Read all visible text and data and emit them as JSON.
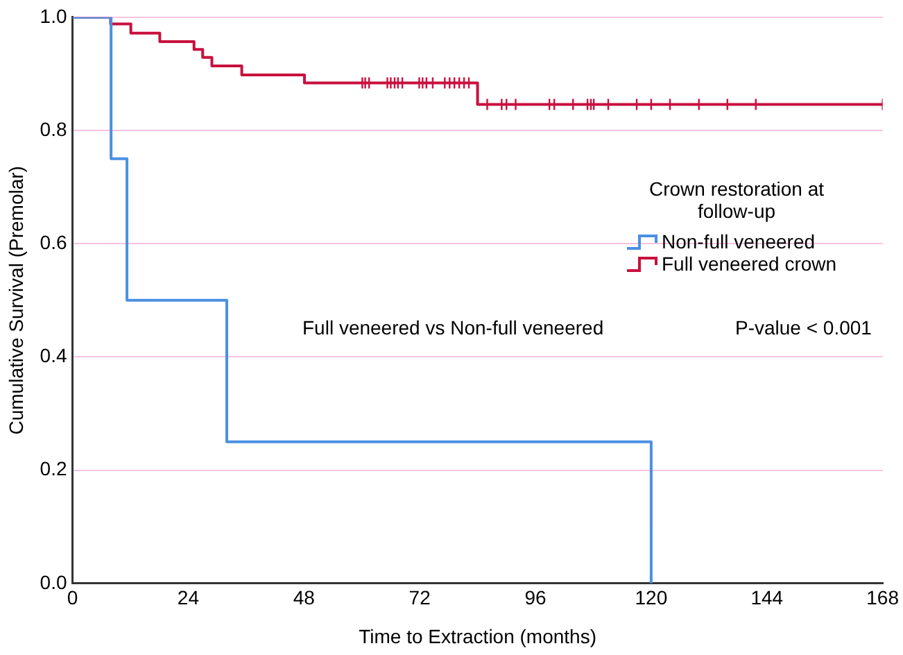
{
  "chart_data": {
    "type": "step",
    "xlabel": "Time to Extraction (months)",
    "ylabel": "Cumulative Survival (Premolar)",
    "legend_title": "Crown restoration at follow-up",
    "annotations": [
      "Full veneered vs Non-full veneered",
      "P-value < 0.001"
    ],
    "xlim": [
      0,
      168
    ],
    "xticks": [
      0,
      24,
      48,
      72,
      96,
      120,
      144,
      168
    ],
    "ylim": [
      0,
      1
    ],
    "yticks": [
      {
        "value": 0,
        "label": "0.0"
      },
      0.2,
      0.4,
      0.6,
      0.8,
      {
        "value": 1,
        "label": "1.0"
      }
    ],
    "grid": "y",
    "legend": "right",
    "line_style": "solid",
    "series": [
      {
        "name": "Non-full veneered",
        "color": "#4a90e2",
        "x": [
          0,
          8,
          11.3,
          32,
          120
        ],
        "values": [
          1,
          0.75,
          0.5,
          0.25,
          0
        ]
      },
      {
        "name": "Full veneered crown",
        "color": "#c8103e",
        "x": [
          0,
          7.9,
          12.1,
          18.1,
          25.2,
          27,
          28.9,
          35.1,
          48.1,
          84,
          168
        ],
        "values": [
          1,
          0.988,
          0.972,
          0.957,
          0.943,
          0.929,
          0.914,
          0.898,
          0.884,
          0.846,
          0.846
        ]
      },
      {
        "type": "scatter",
        "marker": "cross",
        "color": "#c8103e",
        "x": [
          60.1,
          60.7,
          61.5,
          65.3,
          66,
          66.8,
          67.5,
          68.4,
          71.9,
          72.6,
          73.4,
          74.7,
          77.2,
          78.2,
          79.2,
          80.2,
          81.2,
          82.2,
          86,
          89,
          90,
          91.9,
          98.9,
          99.9,
          103.8,
          106.8,
          107.5,
          108.1,
          111.1,
          117,
          120,
          123.9,
          129.9,
          135.8,
          141.7,
          168
        ],
        "values": [
          0.884,
          0.884,
          0.884,
          0.884,
          0.884,
          0.884,
          0.884,
          0.884,
          0.884,
          0.884,
          0.884,
          0.884,
          0.884,
          0.884,
          0.884,
          0.884,
          0.884,
          0.884,
          0.846,
          0.846,
          0.846,
          0.846,
          0.846,
          0.846,
          0.846,
          0.846,
          0.846,
          0.846,
          0.846,
          0.846,
          0.846,
          0.846,
          0.846,
          0.846,
          0.846,
          0.846
        ]
      }
    ]
  }
}
